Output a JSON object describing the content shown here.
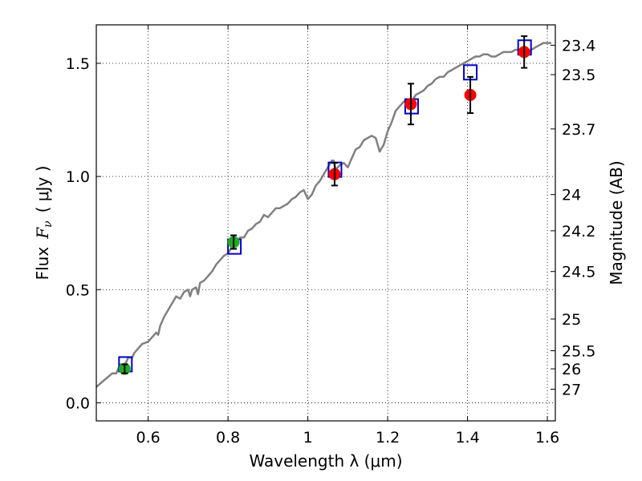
{
  "chart_data": {
    "type": "scatter",
    "xlabel": "Wavelength  λ (μm)",
    "ylabel": "Flux  F_ν  ( μJy )",
    "ylabel_parts": {
      "prefix": "Flux",
      "symbol": "F",
      "subscript": "ν",
      "unit": "( μJy )"
    },
    "ylabel_right": "Magnitude (AB)",
    "xlim": [
      0.47,
      1.62
    ],
    "ylim": [
      -0.08,
      1.67
    ],
    "grid": true,
    "x_ticks": [
      "0.6",
      "0.8",
      "1",
      "1.2",
      "1.4",
      "1.6"
    ],
    "x_tick_values": [
      0.6,
      0.8,
      1.0,
      1.2,
      1.4,
      1.6
    ],
    "y_ticks": [
      "0.0",
      "0.5",
      "1.0",
      "1.5"
    ],
    "y_tick_values": [
      0.0,
      0.5,
      1.0,
      1.5
    ],
    "right_ticks": [
      {
        "label": "23.4",
        "flux": 1.58
      },
      {
        "label": "23.5",
        "flux": 1.45
      },
      {
        "label": "23.7",
        "flux": 1.21
      },
      {
        "label": "24",
        "flux": 0.92
      },
      {
        "label": "24.2",
        "flux": 0.76
      },
      {
        "label": "24.5",
        "flux": 0.58
      },
      {
        "label": "25",
        "flux": 0.37
      },
      {
        "label": "25.5",
        "flux": 0.23
      },
      {
        "label": "26",
        "flux": 0.15
      },
      {
        "label": "27",
        "flux": 0.06
      }
    ],
    "series": [
      {
        "kind": "line",
        "color": "#808080",
        "x": [
          0.47,
          0.49,
          0.51,
          0.52,
          0.53,
          0.54,
          0.55,
          0.56,
          0.565,
          0.575,
          0.585,
          0.6,
          0.61,
          0.62,
          0.625,
          0.63,
          0.64,
          0.65,
          0.66,
          0.67,
          0.68,
          0.69,
          0.7,
          0.705,
          0.71,
          0.72,
          0.725,
          0.73,
          0.74,
          0.75,
          0.76,
          0.77,
          0.78,
          0.79,
          0.8,
          0.81,
          0.82,
          0.83,
          0.84,
          0.85,
          0.86,
          0.87,
          0.88,
          0.89,
          0.9,
          0.91,
          0.92,
          0.93,
          0.94,
          0.95,
          0.96,
          0.97,
          0.98,
          0.99,
          1.0,
          1.01,
          1.02,
          1.03,
          1.04,
          1.05,
          1.06,
          1.065,
          1.07,
          1.08,
          1.09,
          1.1,
          1.11,
          1.12,
          1.13,
          1.14,
          1.15,
          1.16,
          1.17,
          1.18,
          1.19,
          1.2,
          1.21,
          1.22,
          1.23,
          1.24,
          1.25,
          1.26,
          1.27,
          1.28,
          1.29,
          1.3,
          1.31,
          1.32,
          1.33,
          1.34,
          1.35,
          1.36,
          1.37,
          1.38,
          1.39,
          1.4,
          1.41,
          1.42,
          1.43,
          1.44,
          1.45,
          1.46,
          1.47,
          1.48,
          1.49,
          1.5,
          1.51,
          1.52,
          1.53,
          1.54,
          1.55,
          1.56,
          1.57,
          1.58,
          1.59,
          1.6,
          1.61
        ],
        "y": [
          0.07,
          0.1,
          0.13,
          0.13,
          0.17,
          0.16,
          0.2,
          0.2,
          0.22,
          0.24,
          0.26,
          0.27,
          0.29,
          0.31,
          0.3,
          0.34,
          0.38,
          0.41,
          0.44,
          0.47,
          0.46,
          0.49,
          0.5,
          0.47,
          0.5,
          0.51,
          0.48,
          0.53,
          0.54,
          0.56,
          0.58,
          0.61,
          0.63,
          0.65,
          0.66,
          0.69,
          0.7,
          0.73,
          0.73,
          0.76,
          0.77,
          0.79,
          0.8,
          0.83,
          0.82,
          0.84,
          0.86,
          0.86,
          0.87,
          0.88,
          0.9,
          0.91,
          0.93,
          0.94,
          0.9,
          0.92,
          0.96,
          0.98,
          1.01,
          1.04,
          1.07,
          1.07,
          1.03,
          1.05,
          1.06,
          1.04,
          1.08,
          1.12,
          1.13,
          1.16,
          1.17,
          1.18,
          1.17,
          1.11,
          1.14,
          1.2,
          1.24,
          1.29,
          1.31,
          1.33,
          1.34,
          1.33,
          1.36,
          1.37,
          1.38,
          1.4,
          1.41,
          1.43,
          1.44,
          1.44,
          1.46,
          1.47,
          1.48,
          1.49,
          1.5,
          1.51,
          1.52,
          1.53,
          1.53,
          1.54,
          1.54,
          1.53,
          1.53,
          1.54,
          1.55,
          1.55,
          1.55,
          1.56,
          1.56,
          1.55,
          1.55,
          1.56,
          1.57,
          1.58,
          1.59,
          1.59,
          1.59
        ]
      },
      {
        "kind": "squares",
        "color": "#0000cc",
        "x": [
          0.543,
          0.816,
          1.068,
          1.26,
          1.407,
          1.543
        ],
        "y": [
          0.17,
          0.69,
          1.03,
          1.31,
          1.46,
          1.57
        ]
      },
      {
        "kind": "points",
        "color": "#22aa22",
        "x": [
          0.541,
          0.814
        ],
        "y": [
          0.15,
          0.71
        ],
        "yerr": [
          0.02,
          0.03
        ]
      },
      {
        "kind": "points",
        "color": "#ff0000",
        "x": [
          1.067,
          1.258,
          1.407,
          1.542
        ],
        "y": [
          1.01,
          1.32,
          1.36,
          1.55
        ],
        "yerr": [
          0.05,
          0.09,
          0.08,
          0.07
        ]
      }
    ]
  }
}
